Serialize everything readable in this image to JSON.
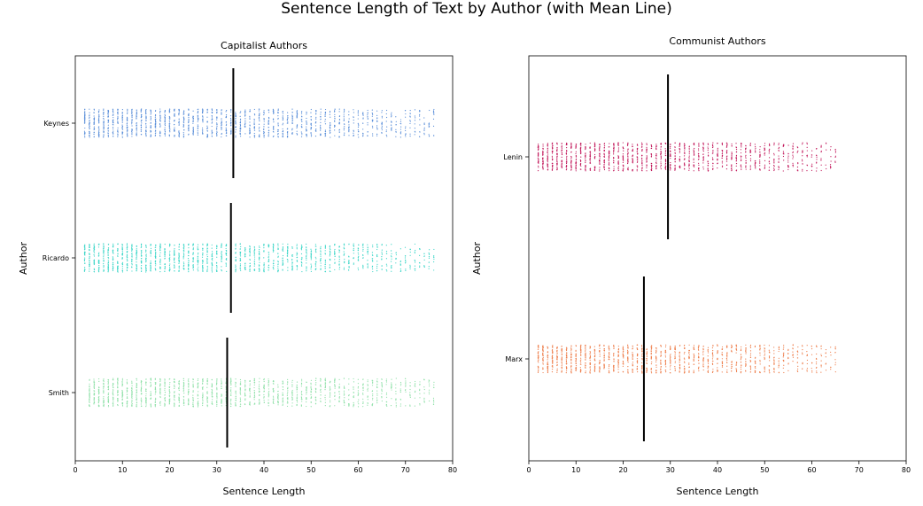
{
  "suptitle": "Sentence Length of Text by Author (with Mean Line)",
  "chart_data": [
    {
      "type": "scatter",
      "subtype": "strip",
      "title": "Capitalist Authors",
      "xlabel": "Sentence Length",
      "ylabel": "Author",
      "xlim": [
        0,
        80
      ],
      "xticks": [
        "0",
        "10",
        "20",
        "30",
        "40",
        "50",
        "60",
        "70",
        "80"
      ],
      "grid": false,
      "categories": [
        "Keynes",
        "Ricardo",
        "Smith"
      ],
      "series": [
        {
          "category": "Keynes",
          "color": "#5b8fd9",
          "range": [
            2,
            76
          ],
          "mean": 33.5
        },
        {
          "category": "Ricardo",
          "color": "#3dd6c8",
          "range": [
            2,
            76
          ],
          "mean": 33.0
        },
        {
          "category": "Smith",
          "color": "#8fe0a8",
          "range": [
            3,
            76
          ],
          "mean": 32.2
        }
      ]
    },
    {
      "type": "scatter",
      "subtype": "strip",
      "title": "Communist Authors",
      "xlabel": "Sentence Length",
      "ylabel": "Author",
      "xlim": [
        0,
        80
      ],
      "xticks": [
        "0",
        "10",
        "20",
        "30",
        "40",
        "50",
        "60",
        "70",
        "80"
      ],
      "grid": false,
      "categories": [
        "Lenin",
        "Marx"
      ],
      "series": [
        {
          "category": "Lenin",
          "color": "#c2185b",
          "range": [
            2,
            65
          ],
          "mean": 29.5
        },
        {
          "category": "Marx",
          "color": "#ee7f4d",
          "range": [
            2,
            65
          ],
          "mean": 24.4
        }
      ]
    }
  ]
}
